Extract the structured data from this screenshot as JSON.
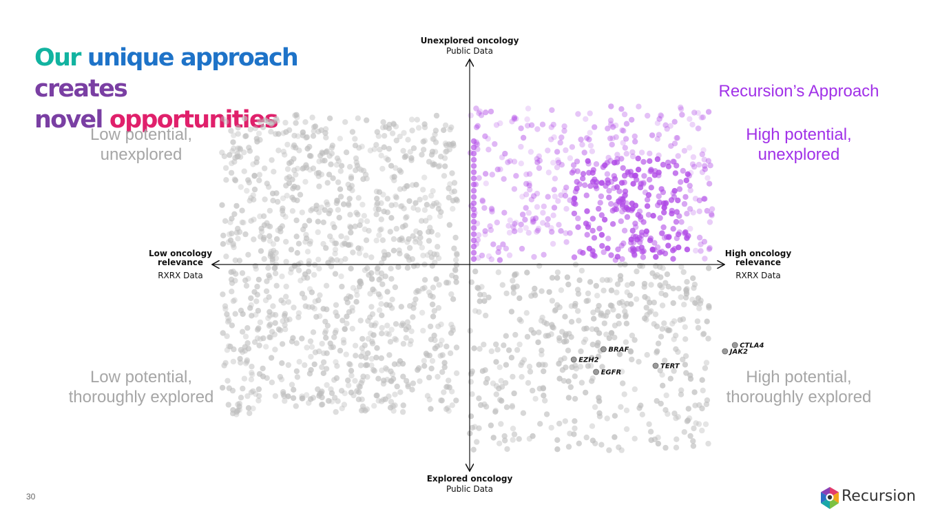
{
  "slide": {
    "title_parts": [
      {
        "text": "Our unique approach ",
        "color": "#0ea3a8"
      },
      {
        "text": "creates",
        "color": "#7b3fa0"
      },
      {
        "text": " ",
        "color": "#0ea3a8"
      },
      {
        "text": "novel opportunities",
        "color": "#1565c0"
      }
    ],
    "title_gradient": [
      "#12b3a0",
      "#1e73c8",
      "#7a3fa3",
      "#e0206b"
    ],
    "page_number": "30",
    "brand": "Recursion"
  },
  "quadrants": {
    "top_left": {
      "line1": "Low potential,",
      "line2": "unexplored"
    },
    "top_right_heading": "Recursion’s Approach",
    "top_right": {
      "line1": "High potential,",
      "line2": "unexplored"
    },
    "bottom_left": {
      "line1": "Low potential,",
      "line2": "thoroughly explored"
    },
    "bottom_right": {
      "line1": "High potential,",
      "line2": "thoroughly explored"
    }
  },
  "axes": {
    "top": {
      "title": "Unexplored oncology",
      "subtitle": "Public Data"
    },
    "bottom": {
      "title": "Explored oncology",
      "subtitle": "Public Data"
    },
    "left": {
      "title_line1": "Low oncology",
      "title_line2": "relevance",
      "subtitle": "RXRX Data"
    },
    "right": {
      "title_line1": "High oncology",
      "title_line2": "relevance",
      "subtitle": "RXRX Data"
    }
  },
  "chart_data": {
    "type": "scatter",
    "xlim": [
      -1,
      1
    ],
    "ylim": [
      -1,
      1
    ],
    "grid": false,
    "colors": {
      "highlight": "#b04ae6",
      "background": "#bdbdbd",
      "labeled": "#9a9a9a"
    },
    "labeled_points": [
      {
        "name": "BRAF",
        "x": 0.54,
        "y": -0.41
      },
      {
        "name": "EZH2",
        "x": 0.42,
        "y": -0.46
      },
      {
        "name": "EGFR",
        "x": 0.51,
        "y": -0.52
      },
      {
        "name": "TERT",
        "x": 0.75,
        "y": -0.49
      },
      {
        "name": "CTLA4",
        "x": 1.07,
        "y": -0.39
      },
      {
        "name": "JAK2",
        "x": 1.03,
        "y": -0.42
      }
    ]
  }
}
